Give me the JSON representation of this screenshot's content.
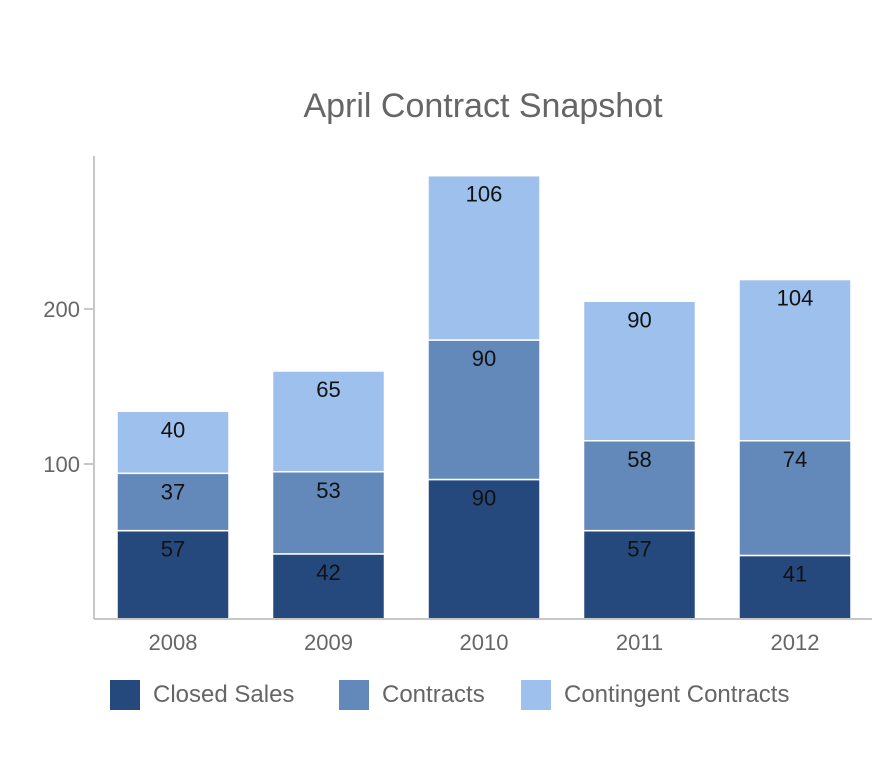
{
  "chart_data": {
    "type": "bar",
    "stacked": true,
    "title": "April Contract Snapshot",
    "xlabel": "",
    "ylabel": "",
    "categories": [
      "2008",
      "2009",
      "2010",
      "2011",
      "2012"
    ],
    "series": [
      {
        "name": "Closed Sales",
        "values": [
          57,
          42,
          90,
          57,
          41
        ],
        "color": "#26497d"
      },
      {
        "name": "Contracts",
        "values": [
          37,
          53,
          90,
          58,
          74
        ],
        "color": "#6389bb"
      },
      {
        "name": "Contingent Contracts",
        "values": [
          40,
          65,
          106,
          90,
          104
        ],
        "color": "#9dc0ed"
      }
    ],
    "yticks": [
      100,
      200
    ],
    "ylim": [
      0,
      300
    ],
    "grid": false,
    "legend": "bottom"
  }
}
